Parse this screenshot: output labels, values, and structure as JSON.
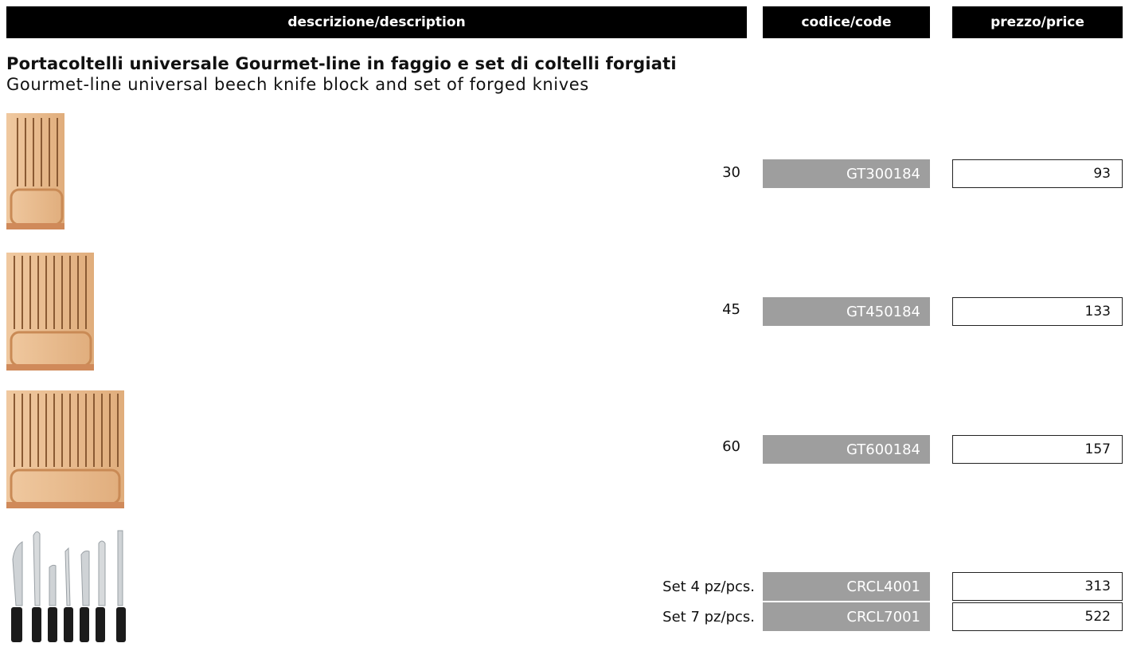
{
  "header": {
    "description": "descrizione/description",
    "code": "codice/code",
    "price": "prezzo/price"
  },
  "product": {
    "title_it": "Portacoltelli universale Gourmet-line in faggio e set di coltelli forgiati",
    "title_en": "Gourmet-line universal beech knife block and set of forged knives"
  },
  "rows": [
    {
      "size": "30",
      "code": "GT300184",
      "price": "93",
      "image": "knife-block-30-image"
    },
    {
      "size": "45",
      "code": "GT450184",
      "price": "133",
      "image": "knife-block-45-image"
    },
    {
      "size": "60",
      "code": "GT600184",
      "price": "157",
      "image": "knife-block-60-image"
    },
    {
      "size": "Set 4 pz/pcs.",
      "code": "CRCL4001",
      "price": "313",
      "image": "forged-knives-set-image"
    },
    {
      "size": "Set 7 pz/pcs.",
      "code": "CRCL7001",
      "price": "522"
    }
  ],
  "colors": {
    "header_bg": "#000000",
    "code_bg": "#9e9e9e",
    "price_border": "#222222",
    "wood": "#e6b98c"
  }
}
